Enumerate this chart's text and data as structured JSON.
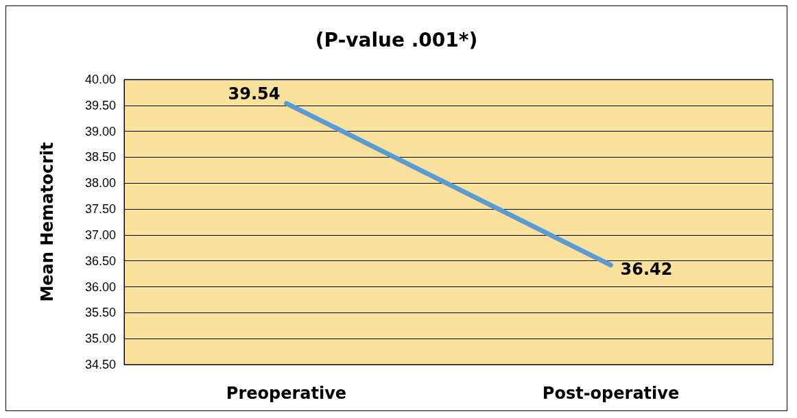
{
  "chart_data": {
    "type": "line",
    "title": "(P-value .001*)",
    "ylabel": "Mean Hematocrit",
    "categories": [
      "Preoperative",
      "Post-operative"
    ],
    "series": [
      {
        "color": "#5b9bd5",
        "values": [
          39.54,
          36.42
        ]
      }
    ],
    "ylim": [
      34.5,
      40
    ],
    "yticks": [
      {
        "value": 34.5,
        "label": "34.50"
      },
      {
        "value": 35,
        "label": "35.00"
      },
      {
        "value": 35.5,
        "label": "35.50"
      },
      {
        "value": 36,
        "label": "36.00"
      },
      {
        "value": 36.5,
        "label": "36.50"
      },
      {
        "value": 37,
        "label": "37.00"
      },
      {
        "value": 37.5,
        "label": "37.50"
      },
      {
        "value": 38,
        "label": "38.00"
      },
      {
        "value": 38.5,
        "label": "38.50"
      },
      {
        "value": 39,
        "label": "39.00"
      },
      {
        "value": 39.5,
        "label": "39.50"
      },
      {
        "value": 40,
        "label": "40.00"
      }
    ],
    "grid": "y",
    "data_labels": true,
    "marker": "none",
    "line_style": "solid"
  }
}
